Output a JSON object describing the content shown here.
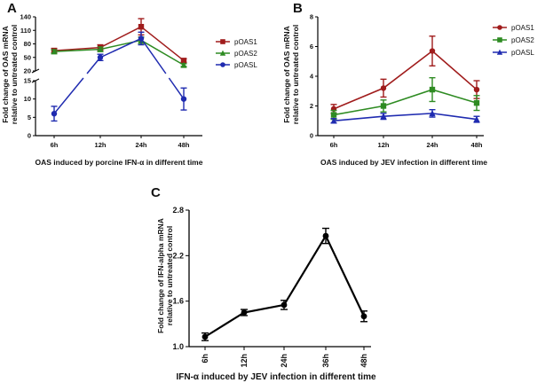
{
  "chart_data": [
    {
      "panel": "A",
      "type": "line",
      "categories": [
        "6h",
        "12h",
        "24h",
        "48h"
      ],
      "xlabel": "OAS induced by porcine IFN-α in different time",
      "ylabel": [
        "Fold change of OAS mRNA",
        "relative to untreated control"
      ],
      "y_axis_upper": {
        "ylim": [
          20,
          140
        ],
        "ticks": [
          "20",
          "50",
          "80",
          "110",
          "140"
        ]
      },
      "y_axis_lower": {
        "ylim": [
          0,
          15
        ],
        "ticks": [
          "0",
          "5",
          "10",
          "15"
        ]
      },
      "legend_position": "right",
      "series": [
        {
          "name": "pOAS1",
          "color": "#a01c1c",
          "marker": "square",
          "values": [
            65,
            72,
            118,
            43
          ],
          "err": [
            5,
            6,
            18,
            4
          ]
        },
        {
          "name": "pOAS2",
          "color": "#2e8b22",
          "marker": "triangle",
          "values": [
            63,
            68,
            88,
            33
          ],
          "err": [
            4,
            5,
            7,
            3
          ]
        },
        {
          "name": "pOASL",
          "color": "#1f2bb0",
          "marker": "circle",
          "values": [
            6,
            50,
            92,
            10
          ],
          "err": [
            2,
            7,
            14,
            3
          ]
        }
      ]
    },
    {
      "panel": "B",
      "type": "line",
      "categories": [
        "6h",
        "12h",
        "24h",
        "48h"
      ],
      "xlabel": "OAS induced by JEV infection in different time",
      "ylabel": [
        "Fold change of OAS mRNA",
        "relative to untreated control"
      ],
      "ylim": [
        0,
        8
      ],
      "yticks": [
        "0",
        "2",
        "4",
        "6",
        "8"
      ],
      "legend_position": "top-right",
      "series": [
        {
          "name": "pOAS1",
          "color": "#a01c1c",
          "marker": "circle",
          "values": [
            1.8,
            3.2,
            5.7,
            3.1
          ],
          "err": [
            0.3,
            0.6,
            1.0,
            0.6
          ]
        },
        {
          "name": "pOAS2",
          "color": "#2e8b22",
          "marker": "square",
          "values": [
            1.4,
            2.0,
            3.1,
            2.2
          ],
          "err": [
            0.3,
            0.4,
            0.8,
            0.5
          ]
        },
        {
          "name": "pOASL",
          "color": "#1f2bb0",
          "marker": "triangle",
          "values": [
            1.0,
            1.3,
            1.5,
            1.1
          ],
          "err": [
            0.15,
            0.2,
            0.25,
            0.2
          ]
        }
      ]
    },
    {
      "panel": "C",
      "type": "line",
      "categories": [
        "6h",
        "12h",
        "24h",
        "36h",
        "48h"
      ],
      "xlabel": "IFN-α induced by JEV infection in different time",
      "ylabel": [
        "Fold change of IFN-alpha mRNA",
        "relative to untreated control"
      ],
      "ylim": [
        1.0,
        2.8
      ],
      "yticks": [
        "1.0",
        "1.6",
        "2.2",
        "2.8"
      ],
      "series": [
        {
          "color": "#000000",
          "marker": "circle",
          "values": [
            1.13,
            1.45,
            1.55,
            2.46,
            1.4
          ],
          "err": [
            0.05,
            0.04,
            0.06,
            0.1,
            0.07
          ]
        }
      ]
    }
  ]
}
